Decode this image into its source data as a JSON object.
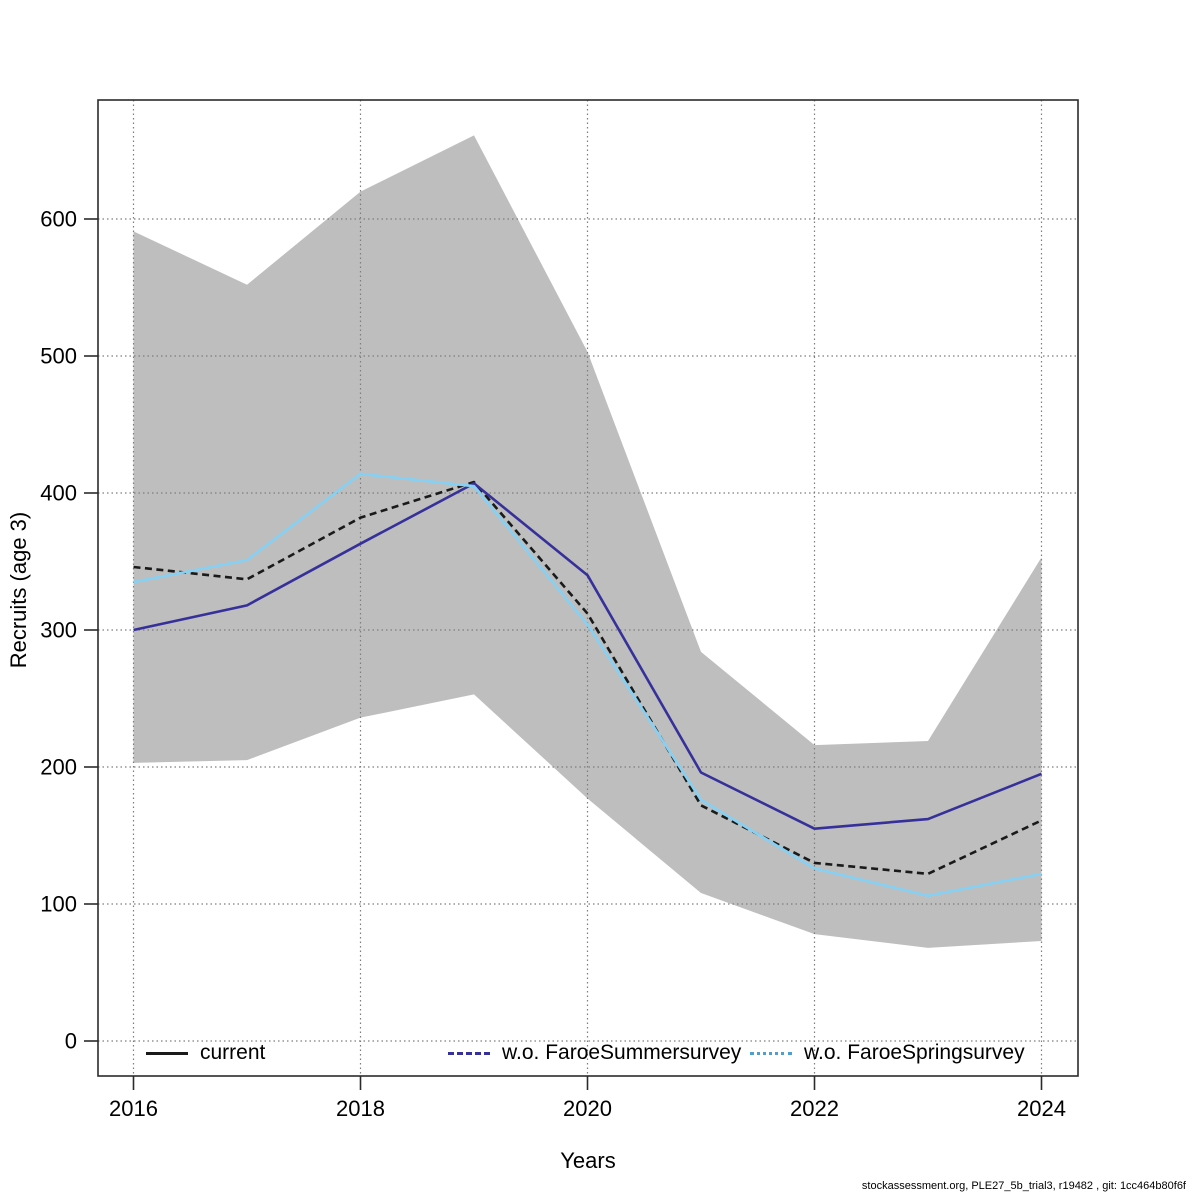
{
  "chart_data": {
    "type": "line",
    "title": "",
    "xlabel": "Years",
    "ylabel": "Recruits (age 3)",
    "x": [
      2016,
      2017,
      2018,
      2019,
      2020,
      2021,
      2022,
      2023,
      2024
    ],
    "x_ticks": [
      2016,
      2018,
      2020,
      2022,
      2024
    ],
    "y_ticks": [
      0,
      100,
      200,
      300,
      400,
      500,
      600
    ],
    "ylim": [
      -25,
      688
    ],
    "xlim": [
      2015.7,
      2024.3
    ],
    "grid": "dotted gridlines at labeled ticks, both axes",
    "legend_position": "bottom inside plot area",
    "series": [
      {
        "name": "current",
        "color": "#1a1a1a",
        "style": "dashed",
        "values": [
          346,
          337,
          382,
          408,
          312,
          172,
          130,
          122,
          161
        ]
      },
      {
        "name": "w.o. FaroeSummersurvey",
        "color": "#36309A",
        "style": "solid",
        "values": [
          300,
          318,
          363,
          407,
          340,
          196,
          155,
          162,
          195
        ]
      },
      {
        "name": "w.o. FaroeSpringsurvey",
        "color": "#86D1F3",
        "style": "solid",
        "values": [
          335,
          351,
          414,
          405,
          304,
          176,
          126,
          106,
          122
        ]
      }
    ],
    "confidence_band": {
      "series": "current",
      "color": "#BEBEBE",
      "lower": [
        203,
        205,
        236,
        253,
        177,
        108,
        78,
        68,
        73
      ],
      "upper": [
        591,
        552,
        620,
        661,
        503,
        284,
        216,
        219,
        353
      ]
    }
  },
  "axes": {
    "x_label": "Years",
    "y_label": "Recruits (age 3)"
  },
  "legend": {
    "items": [
      {
        "label": "current"
      },
      {
        "label": "w.o. FaroeSummersurvey"
      },
      {
        "label": "w.o. FaroeSpringsurvey"
      }
    ]
  },
  "footer": {
    "text": "stockassessment.org, PLE27_5b_trial3, r19482 , git: 1cc464b80f6f"
  }
}
